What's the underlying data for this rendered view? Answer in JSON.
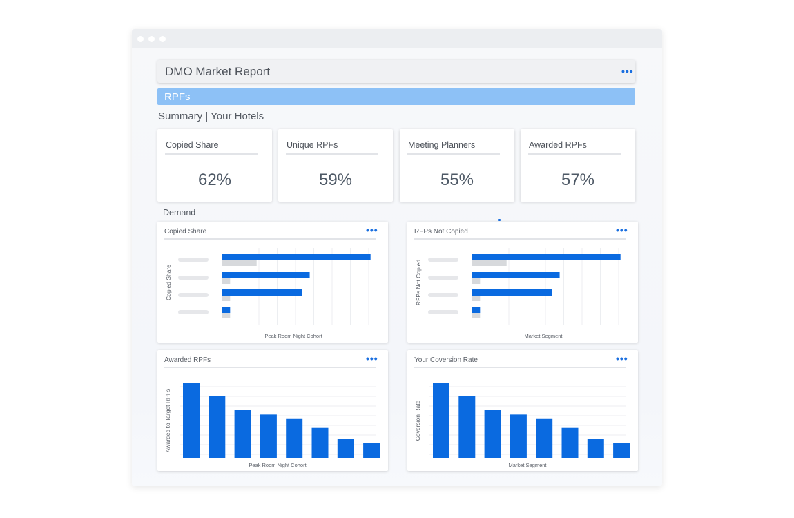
{
  "report": {
    "title": "DMO Market Report",
    "section": "RPFs",
    "summary_title": "Summary | Your Hotels",
    "demand_label": "Demand"
  },
  "kpis": [
    {
      "label": "Copied Share",
      "value": "62%"
    },
    {
      "label": "Unique RPFs",
      "value": "59%"
    },
    {
      "label": "Meeting Planners",
      "value": "55%"
    },
    {
      "label": "Awarded RPFs",
      "value": "57%"
    }
  ],
  "colors": {
    "accent": "#0a6ae0",
    "secondary_bar": "#d7d9dc",
    "header_band": "#8dc1f6"
  },
  "icons": [
    "more-dots-icon"
  ],
  "chart_data": [
    {
      "type": "bar",
      "orientation": "horizontal",
      "title": "Copied Share",
      "xlabel": "Peak Room Night Cohort",
      "ylabel": "Copied Share",
      "categories": [
        "",
        "",
        "",
        ""
      ],
      "series": [
        {
          "values": [
            95,
            56,
            51,
            5
          ]
        },
        {
          "values": [
            22,
            5,
            5,
            5
          ]
        }
      ],
      "xlim": [
        0,
        100
      ],
      "grid": true
    },
    {
      "type": "bar",
      "orientation": "horizontal",
      "title": "RFPs Not Copied",
      "xlabel": "Market Segment",
      "ylabel": "RFPs Not Copied",
      "categories": [
        "",
        "",
        "",
        ""
      ],
      "series": [
        {
          "values": [
            95,
            56,
            51,
            5
          ]
        },
        {
          "values": [
            22,
            5,
            5,
            5
          ]
        }
      ],
      "xlim": [
        0,
        100
      ],
      "grid": true
    },
    {
      "type": "bar",
      "title": "Awarded RPFs",
      "xlabel": "Peak Room Night Cohort",
      "ylabel": "Awarded to Target RPFs",
      "categories": [
        "",
        "",
        "",
        "",
        "",
        "",
        "",
        ""
      ],
      "values": [
        100,
        83,
        64,
        58,
        53,
        41,
        25,
        20
      ],
      "ylim": [
        0,
        100
      ],
      "grid": true
    },
    {
      "type": "bar",
      "title": "Your Coversion Rate",
      "xlabel": "Market Segment",
      "ylabel": "Coversion Rate",
      "categories": [
        "",
        "",
        "",
        "",
        "",
        "",
        "",
        ""
      ],
      "values": [
        100,
        83,
        64,
        58,
        53,
        41,
        25,
        20
      ],
      "ylim": [
        0,
        100
      ],
      "grid": true
    }
  ]
}
